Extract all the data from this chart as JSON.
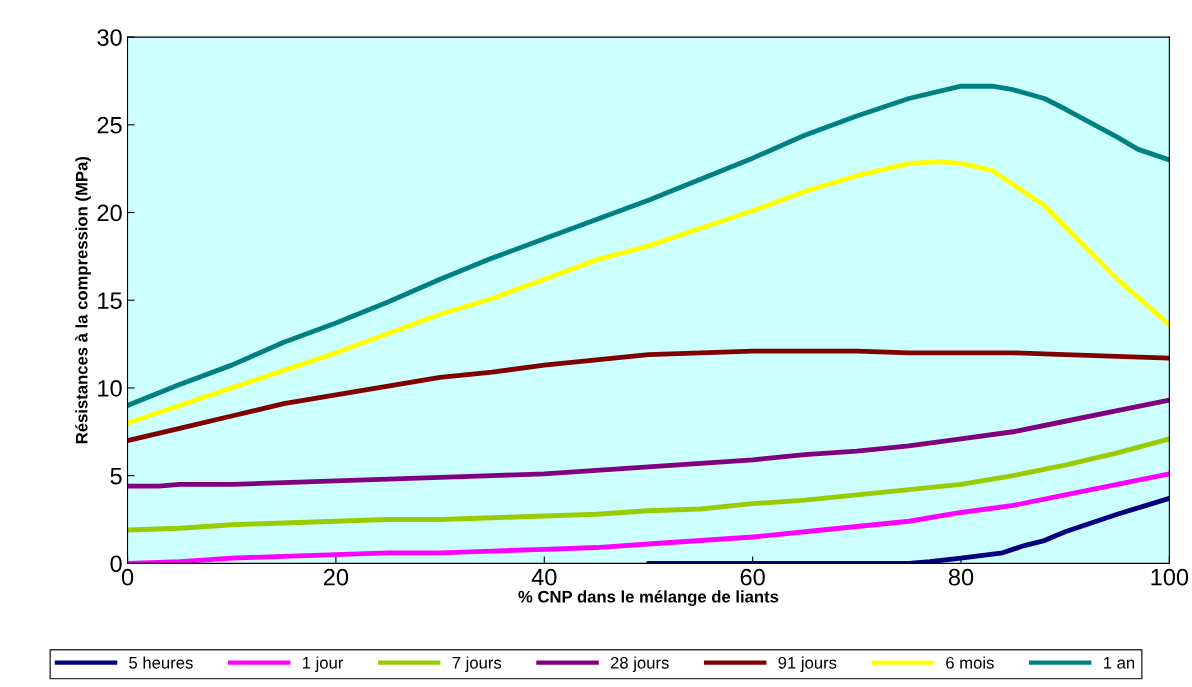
{
  "chart_data": {
    "type": "line",
    "xlabel": "% CNP dans le mélange de liants",
    "ylabel": "Résistances à la compression (MPa)",
    "xlim": [
      0,
      100
    ],
    "xticks": [
      0,
      20,
      40,
      60,
      80,
      100
    ],
    "ylim": [
      0,
      30
    ],
    "yticks": [
      0,
      5,
      10,
      15,
      20,
      25,
      30
    ],
    "grid": false,
    "legend": "bottom",
    "marker": "none",
    "line_style": "solid",
    "series": [
      {
        "name": "5 heures",
        "color": "#000080",
        "x": [
          50,
          55,
          60,
          65,
          70,
          75,
          77,
          80,
          84,
          86,
          88,
          90,
          95,
          100
        ],
        "values": [
          0,
          0,
          0,
          0,
          0,
          0,
          0.1,
          0.3,
          0.6,
          1.0,
          1.3,
          1.8,
          2.8,
          3.7
        ]
      },
      {
        "name": "1 jour",
        "color": "#ff00ff",
        "x": [
          0,
          5,
          10,
          15,
          20,
          25,
          30,
          35,
          40,
          45,
          50,
          55,
          60,
          65,
          70,
          75,
          80,
          85,
          90,
          95,
          100
        ],
        "values": [
          0.0,
          0.1,
          0.3,
          0.4,
          0.5,
          0.6,
          0.6,
          0.7,
          0.8,
          0.9,
          1.1,
          1.3,
          1.5,
          1.8,
          2.1,
          2.4,
          2.9,
          3.3,
          3.9,
          4.5,
          5.1
        ]
      },
      {
        "name": "7 jours",
        "color": "#99cc00",
        "x": [
          0,
          5,
          10,
          15,
          20,
          25,
          30,
          35,
          40,
          45,
          50,
          55,
          60,
          65,
          70,
          75,
          80,
          85,
          90,
          95,
          100
        ],
        "values": [
          1.9,
          2.0,
          2.2,
          2.3,
          2.4,
          2.5,
          2.5,
          2.6,
          2.7,
          2.8,
          3.0,
          3.1,
          3.4,
          3.6,
          3.9,
          4.2,
          4.5,
          5.0,
          5.6,
          6.3,
          7.1
        ]
      },
      {
        "name": "28 jours",
        "color": "#800080",
        "x": [
          0,
          3,
          5,
          10,
          15,
          20,
          25,
          30,
          35,
          40,
          45,
          50,
          55,
          60,
          65,
          70,
          75,
          80,
          85,
          90,
          95,
          100
        ],
        "values": [
          4.4,
          4.4,
          4.5,
          4.5,
          4.6,
          4.7,
          4.8,
          4.9,
          5.0,
          5.1,
          5.3,
          5.5,
          5.7,
          5.9,
          6.2,
          6.4,
          6.7,
          7.1,
          7.5,
          8.1,
          8.7,
          9.3
        ]
      },
      {
        "name": "91 jours",
        "color": "#800000",
        "x": [
          0,
          5,
          10,
          15,
          20,
          25,
          30,
          35,
          40,
          45,
          50,
          55,
          60,
          70,
          75,
          85,
          90,
          95,
          100
        ],
        "values": [
          7.0,
          7.7,
          8.4,
          9.1,
          9.6,
          10.1,
          10.6,
          10.9,
          11.3,
          11.6,
          11.9,
          12.0,
          12.1,
          12.1,
          12.0,
          12.0,
          11.9,
          11.8,
          11.7
        ]
      },
      {
        "name": "6 mois",
        "color": "#ffff00",
        "x": [
          0,
          5,
          10,
          15,
          20,
          25,
          30,
          35,
          40,
          45,
          50,
          55,
          60,
          65,
          70,
          75,
          78,
          80,
          83,
          85,
          88,
          90,
          95,
          100
        ],
        "values": [
          8.0,
          9.0,
          10.0,
          11.0,
          12.0,
          13.1,
          14.2,
          15.1,
          16.2,
          17.3,
          18.1,
          19.1,
          20.1,
          21.2,
          22.1,
          22.8,
          22.9,
          22.8,
          22.4,
          21.6,
          20.4,
          19.2,
          16.2,
          13.6
        ]
      },
      {
        "name": "1 an",
        "color": "#008080",
        "x": [
          0,
          5,
          10,
          15,
          20,
          25,
          30,
          35,
          40,
          45,
          50,
          55,
          60,
          65,
          70,
          75,
          80,
          83,
          85,
          88,
          90,
          95,
          97,
          100
        ],
        "values": [
          9.0,
          10.2,
          11.3,
          12.6,
          13.7,
          14.9,
          16.2,
          17.4,
          18.5,
          19.6,
          20.7,
          21.9,
          23.1,
          24.4,
          25.5,
          26.5,
          27.2,
          27.2,
          27.0,
          26.5,
          25.9,
          24.3,
          23.6,
          23.0
        ]
      }
    ]
  }
}
